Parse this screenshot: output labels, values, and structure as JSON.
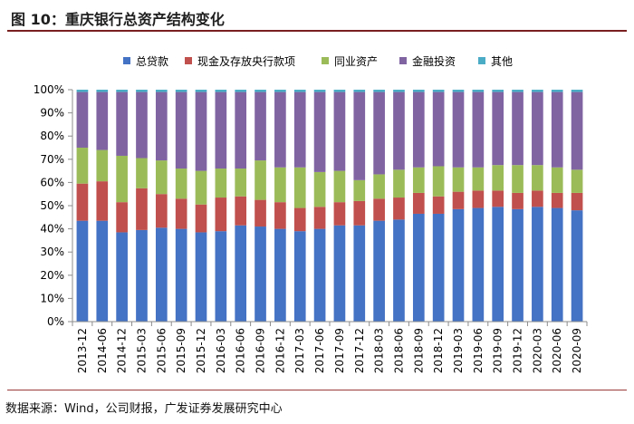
{
  "header": {
    "title": "图 10：重庆银行总资产结构变化"
  },
  "chart_data": {
    "type": "bar",
    "stacked": true,
    "title": "图 10：重庆银行总资产结构变化",
    "xlabel": "",
    "ylabel": "",
    "ylim": [
      0,
      100
    ],
    "y_ticks": [
      "0%",
      "10%",
      "20%",
      "30%",
      "40%",
      "50%",
      "60%",
      "70%",
      "80%",
      "90%",
      "100%"
    ],
    "legend_position": "top",
    "categories": [
      "2013-12",
      "2014-06",
      "2014-12",
      "2015-03",
      "2015-06",
      "2015-09",
      "2015-12",
      "2016-03",
      "2016-06",
      "2016-09",
      "2016-12",
      "2017-03",
      "2017-06",
      "2017-09",
      "2017-12",
      "2018-03",
      "2018-06",
      "2018-09",
      "2018-12",
      "2019-03",
      "2019-06",
      "2019-09",
      "2019-12",
      "2020-03",
      "2020-06",
      "2020-09"
    ],
    "series": [
      {
        "name": "总贷款",
        "color": "#4472c4",
        "values": [
          43.5,
          43.5,
          38.5,
          39.5,
          40.5,
          40,
          38.5,
          39,
          41.5,
          41,
          40,
          39,
          40,
          41.5,
          41.5,
          43.5,
          44,
          46.5,
          46.5,
          48.5,
          49,
          49.5,
          48.5,
          49.5,
          49,
          48
        ]
      },
      {
        "name": "现金及存放央行款项",
        "color": "#c0504d",
        "values": [
          16,
          17,
          13,
          18,
          14.5,
          13,
          12,
          14.5,
          12.5,
          11.5,
          11.5,
          10,
          9.5,
          10,
          10.5,
          9.5,
          9.5,
          9,
          7.5,
          7.5,
          7.5,
          7,
          7,
          7,
          6.5,
          7.5
        ]
      },
      {
        "name": "同业资产",
        "color": "#9bbb59",
        "values": [
          15.5,
          13.5,
          20,
          13,
          14.5,
          13,
          14.5,
          12.5,
          12,
          17,
          15,
          17.5,
          15,
          13.5,
          9,
          10.5,
          12,
          11,
          13,
          10.5,
          10,
          11,
          12,
          11,
          11,
          10
        ]
      },
      {
        "name": "金融投资",
        "color": "#8064a2",
        "values": [
          24,
          25,
          27.5,
          28.5,
          29.5,
          33,
          34,
          33,
          33,
          29.5,
          32.5,
          32.5,
          34.5,
          34,
          38,
          35.5,
          33.5,
          32.5,
          32,
          32.5,
          32.5,
          31.5,
          31.5,
          31.5,
          32.5,
          33.5
        ]
      },
      {
        "name": "其他",
        "color": "#4bacc6",
        "values": [
          1,
          1,
          1,
          1,
          1,
          1,
          1,
          1,
          1,
          1,
          1,
          1,
          1,
          1,
          1,
          1,
          1,
          1,
          1,
          1,
          1,
          1,
          1,
          1,
          1,
          1
        ]
      }
    ]
  },
  "footer": {
    "source": "数据来源：Wind，公司财报，广发证券发展研究中心"
  }
}
